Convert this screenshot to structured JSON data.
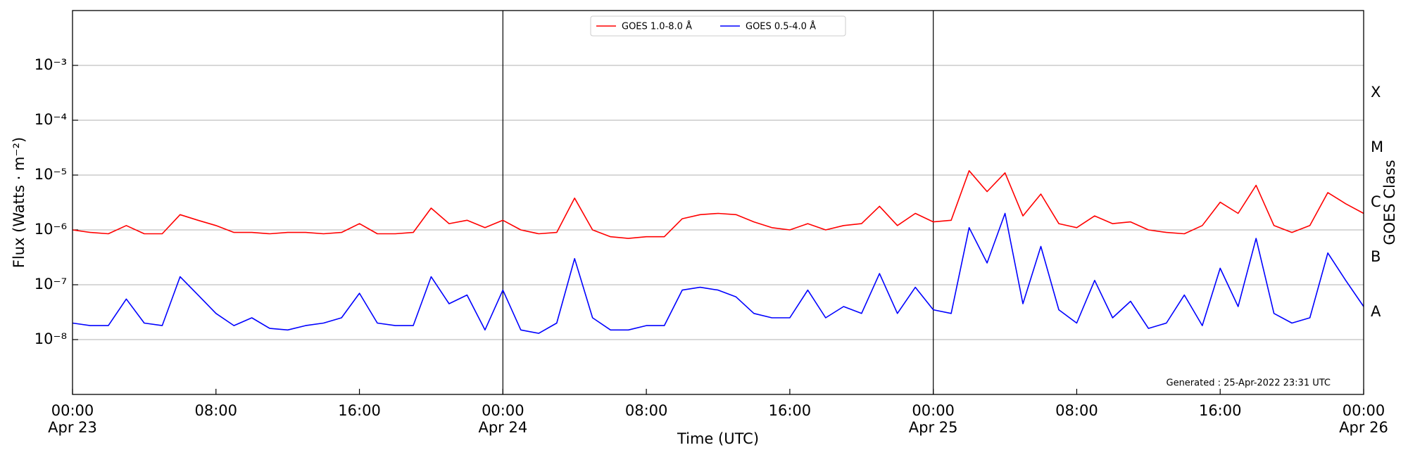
{
  "chart_data": {
    "type": "line",
    "xlabel": "Time (UTC)",
    "ylabel": "Flux (Watts · m⁻²)",
    "y2label": "GOES Class",
    "annotation": "Generated : 25-Apr-2022 23:31 UTC",
    "x": [
      0,
      1,
      2,
      3,
      4,
      5,
      6,
      7,
      8,
      9,
      10,
      11,
      12,
      13,
      14,
      15,
      16,
      17,
      18,
      19,
      20,
      21,
      22,
      23,
      24,
      25,
      26,
      27,
      28,
      29,
      30,
      31,
      32,
      33,
      34,
      35,
      36,
      37,
      38,
      39,
      40,
      41,
      42,
      43,
      44,
      45,
      46,
      47,
      48,
      49,
      50,
      51,
      52,
      53,
      54,
      55,
      56,
      57,
      58,
      59,
      60,
      61,
      62,
      63,
      64,
      65,
      66,
      67,
      68,
      69,
      70,
      71,
      72
    ],
    "series": [
      {
        "name": "GOES 1.0-8.0 Å",
        "color": "#ff0000",
        "values": [
          1e-06,
          9e-07,
          8.5e-07,
          1.2e-06,
          8.5e-07,
          8.5e-07,
          1.9e-06,
          1.5e-06,
          1.2e-06,
          9e-07,
          9e-07,
          8.5e-07,
          9e-07,
          9e-07,
          8.5e-07,
          9e-07,
          1.3e-06,
          8.5e-07,
          8.5e-07,
          9e-07,
          2.5e-06,
          1.3e-06,
          1.5e-06,
          1.1e-06,
          1.5e-06,
          1e-06,
          8.5e-07,
          9e-07,
          3.8e-06,
          1e-06,
          7.5e-07,
          7e-07,
          7.5e-07,
          7.5e-07,
          1.6e-06,
          1.9e-06,
          2e-06,
          1.9e-06,
          1.4e-06,
          1.1e-06,
          1e-06,
          1.3e-06,
          1e-06,
          1.2e-06,
          1.3e-06,
          2.7e-06,
          1.2e-06,
          2e-06,
          1.4e-06,
          1.5e-06,
          1.2e-05,
          5e-06,
          1.1e-05,
          1.8e-06,
          4.5e-06,
          1.3e-06,
          1.1e-06,
          1.8e-06,
          1.3e-06,
          1.4e-06,
          1e-06,
          9e-07,
          8.5e-07,
          1.2e-06,
          3.2e-06,
          2e-06,
          6.5e-06,
          1.2e-06,
          9e-07,
          1.2e-06,
          4.8e-06,
          3e-06,
          2e-06
        ]
      },
      {
        "name": "GOES 0.5-4.0 Å",
        "color": "#0000ff",
        "values": [
          2e-08,
          1.8e-08,
          1.8e-08,
          5.5e-08,
          2e-08,
          1.8e-08,
          1.4e-07,
          6.5e-08,
          3e-08,
          1.8e-08,
          2.5e-08,
          1.6e-08,
          1.5e-08,
          1.8e-08,
          2e-08,
          2.5e-08,
          7e-08,
          2e-08,
          1.8e-08,
          1.8e-08,
          1.4e-07,
          4.5e-08,
          6.5e-08,
          1.5e-08,
          8e-08,
          1.5e-08,
          1.3e-08,
          2e-08,
          3e-07,
          2.5e-08,
          1.5e-08,
          1.5e-08,
          1.8e-08,
          1.8e-08,
          8e-08,
          9e-08,
          8e-08,
          6e-08,
          3e-08,
          2.5e-08,
          2.5e-08,
          8e-08,
          2.5e-08,
          4e-08,
          3e-08,
          1.6e-07,
          3e-08,
          9e-08,
          3.5e-08,
          3e-08,
          1.1e-06,
          2.5e-07,
          2e-06,
          4.5e-08,
          5e-07,
          3.5e-08,
          2e-08,
          1.2e-07,
          2.5e-08,
          5e-08,
          1.6e-08,
          2e-08,
          6.5e-08,
          1.8e-08,
          2e-07,
          4e-08,
          7e-07,
          3e-08,
          2e-08,
          2.5e-08,
          3.8e-07,
          1.2e-07,
          4e-08
        ]
      }
    ],
    "xlim": [
      0,
      72
    ],
    "xticks": [
      {
        "value": 0,
        "label": "00:00",
        "sublabel": "Apr 23"
      },
      {
        "value": 8,
        "label": "08:00"
      },
      {
        "value": 16,
        "label": "16:00"
      },
      {
        "value": 24,
        "label": "00:00",
        "sublabel": "Apr 24"
      },
      {
        "value": 32,
        "label": "08:00"
      },
      {
        "value": 40,
        "label": "16:00"
      },
      {
        "value": 48,
        "label": "00:00",
        "sublabel": "Apr 25"
      },
      {
        "value": 56,
        "label": "08:00"
      },
      {
        "value": 64,
        "label": "16:00"
      },
      {
        "value": 72,
        "label": "00:00",
        "sublabel": "Apr 26"
      }
    ],
    "ylim": [
      1e-09,
      0.01
    ],
    "ylog": true,
    "yticks": [
      {
        "value": 1e-08,
        "label": "10⁻⁸"
      },
      {
        "value": 1e-07,
        "label": "10⁻⁷"
      },
      {
        "value": 1e-06,
        "label": "10⁻⁶"
      },
      {
        "value": 1e-05,
        "label": "10⁻⁵"
      },
      {
        "value": 0.0001,
        "label": "10⁻⁴"
      },
      {
        "value": 0.001,
        "label": "10⁻³"
      }
    ],
    "y2lim": [
      1e-09,
      0.01
    ],
    "y2ticks": [
      {
        "value": 3.16e-08,
        "label": "A"
      },
      {
        "value": 3.16e-07,
        "label": "B"
      },
      {
        "value": 3.16e-06,
        "label": "C"
      },
      {
        "value": 3.16e-05,
        "label": "M"
      },
      {
        "value": 0.000316,
        "label": "X"
      }
    ],
    "grid": true,
    "day_lines": true,
    "legend": "upper center"
  }
}
